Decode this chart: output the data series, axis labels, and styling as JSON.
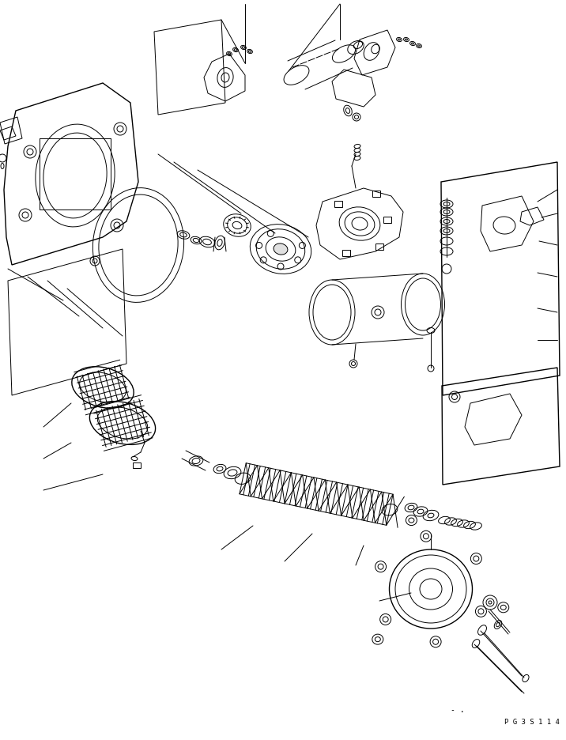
{
  "figure_width": 7.16,
  "figure_height": 9.36,
  "dpi": 100,
  "background_color": "#ffffff",
  "line_color": "#000000",
  "lw": 0.7,
  "part_code": "P G 3 S 1 1 4",
  "dots_text": "- ."
}
